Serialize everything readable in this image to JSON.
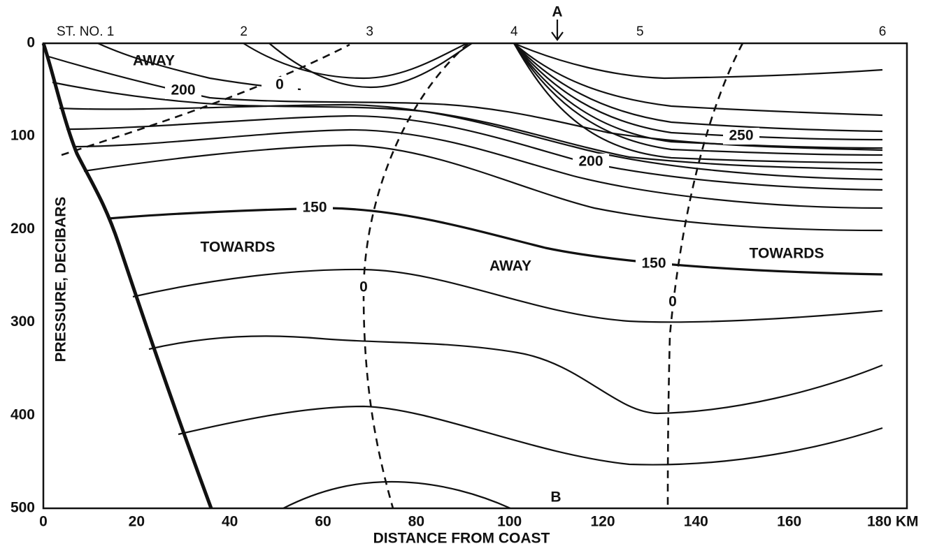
{
  "chart_data": {
    "type": "contour",
    "xlabel": "DISTANCE FROM COAST",
    "ylabel": "PRESSURE, DECIBARS",
    "xlim": [
      0,
      180
    ],
    "xticks": [
      0,
      20,
      40,
      60,
      80,
      100,
      120,
      140,
      160,
      {
        "value": 180,
        "label": "180 KM"
      }
    ],
    "ylim": [
      500,
      0
    ],
    "yticks": [
      0,
      100,
      200,
      300,
      400,
      500
    ],
    "y_inverted": true,
    "grid": false,
    "color": "#000000",
    "stations": [
      {
        "value": 14,
        "label": "ST. NO. 1"
      },
      {
        "value": 43,
        "label": "2"
      },
      {
        "value": 70,
        "label": "3"
      },
      {
        "value": 101,
        "label": "4"
      },
      {
        "value": 128,
        "label": "5"
      },
      {
        "value": 180,
        "label": "6"
      }
    ],
    "annotations": [
      "A",
      "B"
    ],
    "region_labels": [
      "AWAY",
      "TOWARDS",
      "AWAY",
      "TOWARDS"
    ],
    "contour_labels": [
      200,
      0,
      250,
      200,
      150,
      150,
      0,
      0
    ]
  }
}
